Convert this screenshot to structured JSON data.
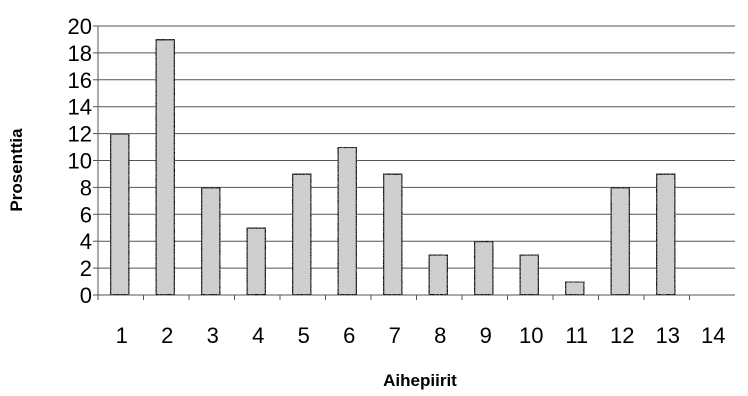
{
  "chart_data": {
    "type": "bar",
    "categories": [
      "1",
      "2",
      "3",
      "4",
      "5",
      "6",
      "7",
      "8",
      "9",
      "10",
      "11",
      "12",
      "13",
      "14"
    ],
    "values": [
      12,
      19,
      8,
      5,
      9,
      11,
      9,
      3,
      4,
      3,
      1,
      8,
      9,
      0
    ],
    "title": "",
    "xlabel": "Aihepiirit",
    "ylabel": "Prosenttia",
    "ylim": [
      0,
      20
    ],
    "yticks": [
      0,
      2,
      4,
      6,
      8,
      10,
      12,
      14,
      16,
      18,
      20
    ],
    "grid": true,
    "legend": "none",
    "colors": {
      "bar_fill": "#d2d2d2",
      "bar_stroke": "#000000",
      "grid": "#555555"
    }
  }
}
